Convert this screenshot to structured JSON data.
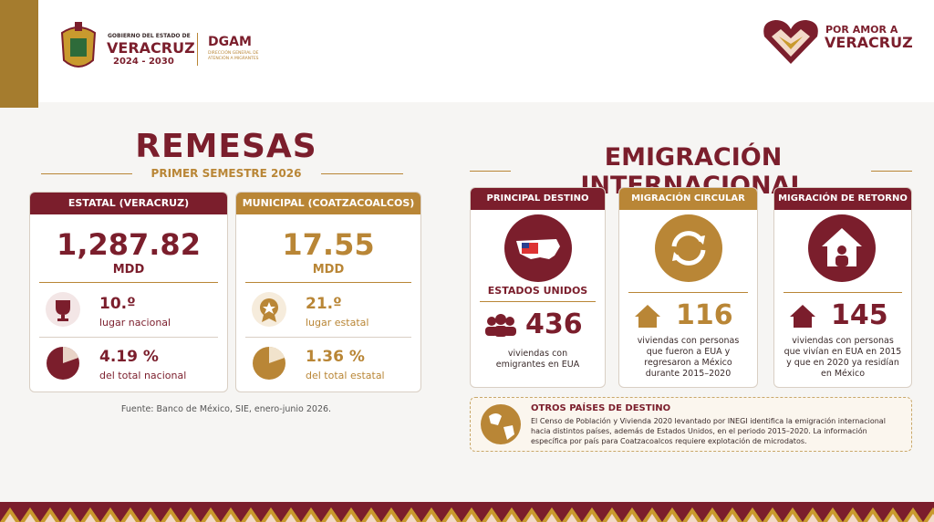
{
  "header": {
    "gov_line1": "GOBIERNO DEL ESTADO DE",
    "gov_name": "VERACRUZ",
    "gov_years": "2024 - 2030",
    "dgam": "DGAM",
    "dgam_sub": "DIRECCIÓN GENERAL DE ATENCIÓN A MIGRANTES",
    "brand_line1": "POR AMOR A",
    "brand_line2": "VERACRUZ"
  },
  "remesas": {
    "title": "REMESAS",
    "subtitle": "PRIMER SEMESTRE 2026",
    "cards": [
      {
        "header": "ESTATAL (VERACRUZ)",
        "amount": "1,287.82",
        "unit": "MDD",
        "rank": "10.º",
        "rank_label": "lugar nacional",
        "share": "4.19 %",
        "share_label": "del total nacional"
      },
      {
        "header": "MUNICIPAL (COATZACOALCOS)",
        "amount": "17.55",
        "unit": "MDD",
        "rank": "21.º",
        "rank_label": "lugar estatal",
        "share": "1.36 %",
        "share_label": "del total estatal"
      }
    ],
    "source": "Fuente: Banco de México, SIE, enero-junio 2026."
  },
  "emigracion": {
    "title": "EMIGRACIÓN INTERNACIONAL",
    "cards": [
      {
        "header": "PRINCIPAL DESTINO",
        "destination": "ESTADOS UNIDOS",
        "number": "436",
        "description": "viviendas con emigrantes en EUA"
      },
      {
        "header": "MIGRACIÓN CIRCULAR",
        "number": "116",
        "description": "viviendas con personas que fueron a EUA y regresaron a México durante 2015–2020"
      },
      {
        "header": "MIGRACIÓN DE RETORNO",
        "number": "145",
        "description": "viviendas con personas que vivían en EUA en 2015 y que en 2020 ya residían en México"
      }
    ],
    "otros": {
      "title": "OTROS PAÍSES DE DESTINO",
      "text": "El Censo de Población y Vivienda 2020 levantado por INEGI identifica la emigración internacional hacia distintos países, además de Estados Unidos, en el periodo 2015–2020. La información específica por país para Coatzacoalcos requiere explotación de microdatos."
    }
  }
}
